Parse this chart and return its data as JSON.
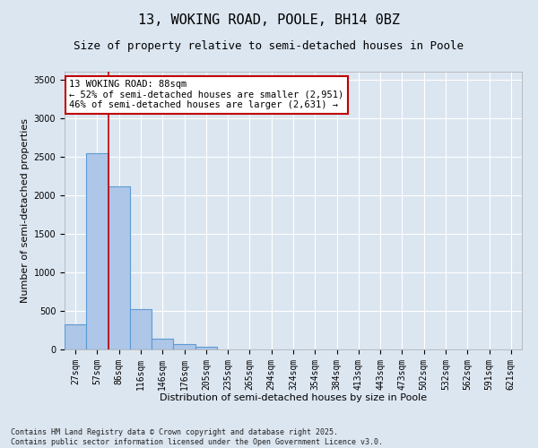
{
  "title": "13, WOKING ROAD, POOLE, BH14 0BZ",
  "subtitle": "Size of property relative to semi-detached houses in Poole",
  "xlabel": "Distribution of semi-detached houses by size in Poole",
  "ylabel": "Number of semi-detached properties",
  "categories": [
    "27sqm",
    "57sqm",
    "86sqm",
    "116sqm",
    "146sqm",
    "176sqm",
    "205sqm",
    "235sqm",
    "265sqm",
    "294sqm",
    "324sqm",
    "354sqm",
    "384sqm",
    "413sqm",
    "443sqm",
    "473sqm",
    "502sqm",
    "532sqm",
    "562sqm",
    "591sqm",
    "621sqm"
  ],
  "values": [
    330,
    2540,
    2110,
    520,
    145,
    65,
    35,
    0,
    0,
    0,
    0,
    0,
    0,
    0,
    0,
    0,
    0,
    0,
    0,
    0,
    0
  ],
  "bar_color": "#aec6e8",
  "bar_edge_color": "#5b9bd5",
  "vline_color": "#c00000",
  "annotation_text": "13 WOKING ROAD: 88sqm\n← 52% of semi-detached houses are smaller (2,951)\n46% of semi-detached houses are larger (2,631) →",
  "annotation_box_color": "#ffffff",
  "annotation_box_edge": "#c00000",
  "ylim": [
    0,
    3600
  ],
  "yticks": [
    0,
    500,
    1000,
    1500,
    2000,
    2500,
    3000,
    3500
  ],
  "background_color": "#dce6f1",
  "plot_background": "#dce6f1",
  "grid_color": "#ffffff",
  "footer_line1": "Contains HM Land Registry data © Crown copyright and database right 2025.",
  "footer_line2": "Contains public sector information licensed under the Open Government Licence v3.0.",
  "title_fontsize": 11,
  "subtitle_fontsize": 9,
  "axis_label_fontsize": 8,
  "tick_fontsize": 7,
  "annotation_fontsize": 7.5,
  "footer_fontsize": 6
}
